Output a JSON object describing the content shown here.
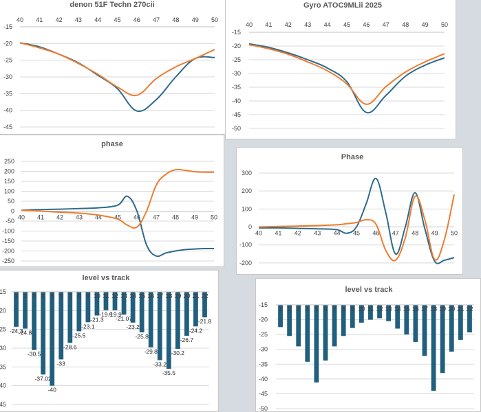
{
  "colors": {
    "blue": "#2e6b8a",
    "orange": "#ed7d31",
    "bar": "#215f7e",
    "grid": "#d9d9d9",
    "axis": "#bfbfbf"
  },
  "chart_data": [
    {
      "id": "c1",
      "type": "line",
      "title": "denon 51F Techn 270cii",
      "x": [
        40,
        41,
        42,
        43,
        44,
        45,
        46,
        47,
        48,
        49,
        50
      ],
      "xlabels": [
        "40",
        "41",
        "42",
        "43",
        "44",
        "45",
        "46",
        "47",
        "48",
        "49",
        "50"
      ],
      "xaxis_position": "top",
      "ylim": [
        -45,
        -15
      ],
      "yticks": [
        -15,
        -20,
        -25,
        -30,
        -35,
        -40,
        -45
      ],
      "series": [
        {
          "name": "blue",
          "color": "#2e6b8a",
          "values": [
            -19.8,
            -21,
            -23.2,
            -25.8,
            -29.5,
            -33.5,
            -40.2,
            -36.8,
            -30,
            -24.5,
            -24.2
          ]
        },
        {
          "name": "orange",
          "color": "#ed7d31",
          "values": [
            -19.8,
            -21.3,
            -23.2,
            -26,
            -29.2,
            -33,
            -35.5,
            -30.5,
            -27,
            -24.5,
            -21.8
          ]
        }
      ]
    },
    {
      "id": "c2",
      "type": "line",
      "title": "Gyro ATOC9MLii 2025",
      "x": [
        40,
        41,
        42,
        43,
        44,
        45,
        46,
        47,
        48,
        49,
        50
      ],
      "xlabels": [
        "40",
        "41",
        "42",
        "43",
        "44",
        "45",
        "46",
        "47",
        "48",
        "49",
        "50"
      ],
      "xaxis_position": "top",
      "ylim": [
        -50,
        -15
      ],
      "yticks": [
        -15,
        -20,
        -25,
        -30,
        -35,
        -40,
        -45,
        -50
      ],
      "series": [
        {
          "name": "blue",
          "color": "#2e6b8a",
          "values": [
            -19.2,
            -20.5,
            -22.5,
            -25,
            -28,
            -33,
            -44.2,
            -38,
            -31,
            -27,
            -24.3
          ]
        },
        {
          "name": "orange",
          "color": "#ed7d31",
          "values": [
            -19.5,
            -21,
            -23,
            -25.8,
            -29,
            -33.8,
            -41.2,
            -34.8,
            -29.5,
            -25.8,
            -22.8
          ]
        }
      ]
    },
    {
      "id": "c3",
      "type": "line",
      "title": "phase",
      "x": [
        40,
        41,
        42,
        43,
        44,
        45,
        45.5,
        46,
        46.5,
        47,
        47.5,
        48,
        48.5,
        49,
        49.5,
        50
      ],
      "xlabels": [
        "40",
        "41",
        "42",
        "43",
        "44",
        "45",
        "46",
        "47",
        "48",
        "49",
        "50"
      ],
      "xaxis_position": "zero",
      "ylim": [
        -250,
        250
      ],
      "yticks": [
        250,
        200,
        150,
        100,
        50,
        0,
        -50,
        -100,
        -150,
        -200,
        -250
      ],
      "series": [
        {
          "name": "blue",
          "color": "#2e6b8a",
          "values": [
            5,
            8,
            10,
            13,
            17,
            30,
            75,
            0,
            -170,
            -225,
            -210,
            -200,
            -193,
            -190,
            -188,
            -188
          ]
        },
        {
          "name": "orange",
          "color": "#ed7d31",
          "values": [
            5,
            0,
            -5,
            -10,
            -20,
            -40,
            -70,
            -80,
            0,
            130,
            185,
            208,
            205,
            198,
            196,
            196
          ]
        }
      ]
    },
    {
      "id": "c4",
      "type": "line",
      "title": "Phase",
      "x": [
        40,
        41,
        42,
        43,
        44,
        44.5,
        45,
        45.5,
        46,
        46.5,
        47,
        47.5,
        48,
        48.5,
        49,
        49.5,
        50
      ],
      "xlabels": [
        "40",
        "41",
        "42",
        "43",
        "44",
        "45",
        "46",
        "47",
        "48",
        "49",
        "50"
      ],
      "xaxis_position": "zero",
      "ylim": [
        -250,
        300
      ],
      "yticks": [
        300,
        200,
        100,
        0,
        -100,
        -200
      ],
      "series": [
        {
          "name": "blue",
          "color": "#2e6b8a",
          "values": [
            -5,
            -5,
            -8,
            -10,
            -15,
            -35,
            0,
            130,
            270,
            80,
            -150,
            0,
            190,
            -10,
            -190,
            -185,
            -170
          ]
        },
        {
          "name": "orange",
          "color": "#ed7d31",
          "values": [
            0,
            3,
            5,
            8,
            12,
            18,
            25,
            40,
            15,
            -130,
            -185,
            -60,
            170,
            40,
            -180,
            -70,
            180
          ]
        }
      ]
    },
    {
      "id": "c5",
      "type": "bar",
      "title": "level vs track",
      "categories": [
        "1",
        "2",
        "3",
        "4",
        "5",
        "6",
        "7",
        "8",
        "9",
        "10",
        "11",
        "12",
        "13",
        "14",
        "15",
        "16",
        "17",
        "18",
        "19",
        "20",
        "21",
        "22"
      ],
      "values": [
        -24.3,
        -24.8,
        -30.5,
        -37.02,
        -40,
        -33,
        -28.6,
        -25.5,
        -23.1,
        -21.3,
        -19.9,
        -19.9,
        -21.07,
        -23.2,
        -25.8,
        -29.8,
        -33.2,
        -35.5,
        -30.2,
        -26.7,
        -24.2,
        -21.8
      ],
      "data_labels": [
        "-24.3",
        "-24.8",
        "-30.5",
        "-37.02",
        "-40",
        "-33",
        "-28.6",
        "-25.5",
        "-23.1",
        "-21.3",
        "-19.9",
        "-19.9",
        "-21.07",
        "-23.2",
        "-25.8",
        "-29.8",
        "-33.2",
        "-35.5",
        "-30.2",
        "-26.7",
        "-24.2",
        "-21.8"
      ],
      "ylim": [
        -45,
        -15
      ],
      "yticks": [
        -15,
        -20,
        -25,
        -30,
        -35,
        -40,
        -45
      ],
      "ytick_labels": [
        "15",
        "20",
        "25",
        "30",
        "35",
        "40",
        "45"
      ]
    },
    {
      "id": "c6",
      "type": "bar",
      "title": "level vs track",
      "categories": [
        "1",
        "2",
        "3",
        "4",
        "5",
        "6",
        "7",
        "8",
        "9",
        "10",
        "11",
        "12",
        "13",
        "14",
        "15",
        "16",
        "17",
        "18",
        "19",
        "20",
        "21",
        "22"
      ],
      "values": [
        -22.5,
        -25.5,
        -29,
        -34.2,
        -41.2,
        -33.8,
        -29,
        -25.5,
        -22.8,
        -21,
        -20,
        -19.5,
        -20.5,
        -23,
        -25,
        -27.5,
        -32.2,
        -44,
        -38,
        -30.8,
        -26.8,
        -24.3
      ],
      "ylim": [
        -50,
        -15
      ],
      "yticks": [
        -15,
        -20,
        -25,
        -30,
        -35,
        -40,
        -45,
        -50
      ]
    }
  ]
}
